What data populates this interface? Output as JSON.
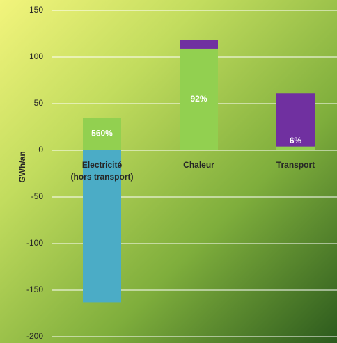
{
  "chart_data": {
    "type": "stacked_bar",
    "categories": [
      "Electricité\n(hors transport)",
      "Chaleur",
      "Transport"
    ],
    "series": [
      {
        "color": "#4bacc6",
        "values": [
          -163,
          null,
          null
        ]
      },
      {
        "color": "#92d050",
        "values": [
          35,
          109,
          4
        ]
      },
      {
        "color": "#7030a0",
        "values": [
          null,
          9,
          57
        ]
      }
    ],
    "share_labels": [
      "560%",
      "92%",
      "6%"
    ],
    "y_label": "GWh/an",
    "ylim": [
      -200,
      150
    ],
    "yticks": [
      -200,
      -150,
      -100,
      -50,
      0,
      50,
      100,
      150
    ],
    "grid": true
  }
}
